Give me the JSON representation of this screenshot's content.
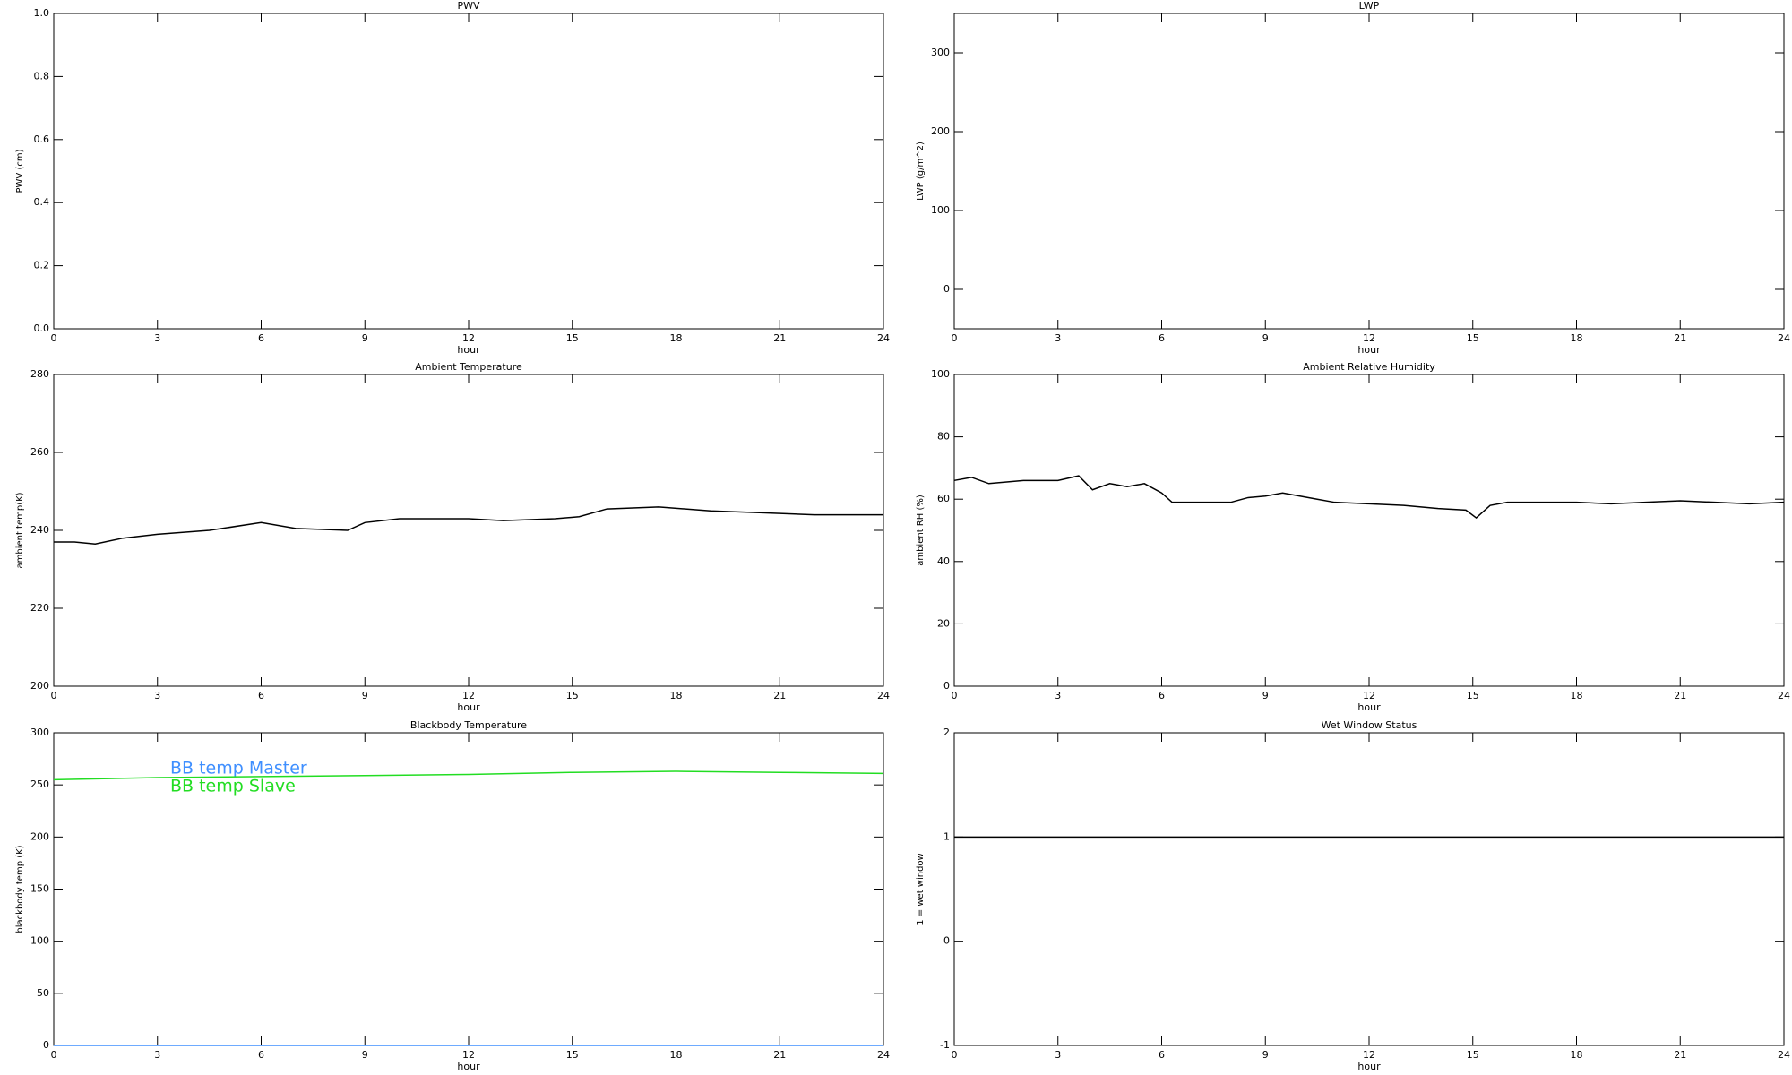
{
  "chart_data": [
    {
      "type": "line",
      "title": "PWV",
      "xlabel": "hour",
      "ylabel": "PWV (cm)",
      "xlim": [
        0,
        24
      ],
      "xticks": [
        0,
        3,
        6,
        9,
        12,
        15,
        18,
        21,
        24
      ],
      "ylim": [
        0,
        1
      ],
      "yticks": [
        {
          "value": 0,
          "label": "0.0"
        },
        0.2,
        0.4,
        0.6,
        0.8,
        {
          "value": 1,
          "label": "1.0"
        }
      ]
    },
    {
      "type": "line",
      "title": "LWP",
      "xlabel": "hour",
      "ylabel": "LWP (g/m^2)",
      "xlim": [
        0,
        24
      ],
      "xticks": [
        0,
        3,
        6,
        9,
        12,
        15,
        18,
        21,
        24
      ],
      "ylim": [
        -50,
        350
      ],
      "yticks": [
        0,
        100,
        200,
        300
      ]
    },
    {
      "type": "line",
      "title": "Ambient Temperature",
      "xlabel": "hour",
      "ylabel": "ambient temp(K)",
      "xlim": [
        0,
        24
      ],
      "xticks": [
        0,
        3,
        6,
        9,
        12,
        15,
        18,
        21,
        24
      ],
      "ylim": [
        200,
        280
      ],
      "yticks": [
        200,
        220,
        240,
        260,
        280
      ],
      "color": "#000000",
      "x": [
        0,
        0.6,
        1.2,
        2,
        3,
        4.5,
        6,
        7,
        8.5,
        9,
        10,
        12,
        13,
        14.5,
        15.2,
        16,
        17.5,
        19,
        20.5,
        22,
        24
      ],
      "values": [
        237,
        237,
        236.5,
        238,
        239,
        240,
        242,
        240.5,
        240,
        242,
        243,
        243,
        242.5,
        243,
        243.5,
        245.5,
        246,
        245,
        244.5,
        244,
        244
      ]
    },
    {
      "type": "line",
      "title": "Ambient Relative Humidity",
      "xlabel": "hour",
      "ylabel": "ambient RH (%)",
      "xlim": [
        0,
        24
      ],
      "xticks": [
        0,
        3,
        6,
        9,
        12,
        15,
        18,
        21,
        24
      ],
      "ylim": [
        0,
        100
      ],
      "yticks": [
        0,
        20,
        40,
        60,
        80,
        100
      ],
      "color": "#000000",
      "x": [
        0,
        0.5,
        1,
        2,
        3,
        3.6,
        4,
        4.5,
        5,
        5.5,
        6,
        6.3,
        7,
        8,
        8.5,
        9,
        9.5,
        10.5,
        11,
        12,
        13,
        14,
        14.8,
        15.1,
        15.5,
        16,
        18,
        19,
        20,
        21,
        22,
        23,
        24
      ],
      "values": [
        66,
        67,
        65,
        66,
        66,
        67.5,
        63,
        65,
        64,
        65,
        62,
        59,
        59,
        59,
        60.5,
        61,
        62,
        60,
        59,
        58.5,
        58,
        57,
        56.5,
        54,
        58,
        59,
        59,
        58.5,
        59,
        59.5,
        59,
        58.5,
        59
      ]
    },
    {
      "type": "line",
      "title": "Blackbody Temperature",
      "xlabel": "hour",
      "ylabel": "blackbody temp (K)",
      "xlim": [
        0,
        24
      ],
      "xticks": [
        0,
        3,
        6,
        9,
        12,
        15,
        18,
        21,
        24
      ],
      "ylim": [
        0,
        300
      ],
      "yticks": [
        0,
        50,
        100,
        150,
        200,
        250,
        300
      ],
      "legend": "upper left",
      "x": [
        0,
        3,
        6,
        9,
        12,
        15,
        18,
        21,
        24
      ],
      "series": [
        {
          "name": "BB temp Master",
          "color": "#3f8fff",
          "values": [
            0,
            0,
            0,
            0,
            0,
            0,
            0,
            0,
            0
          ]
        },
        {
          "name": "BB temp Slave",
          "color": "#22dd22",
          "values": [
            255,
            257,
            258,
            259,
            260,
            262,
            263,
            262,
            261
          ]
        }
      ]
    },
    {
      "type": "line",
      "title": "Wet Window Status",
      "xlabel": "hour",
      "ylabel": "1 = wet window",
      "xlim": [
        0,
        24
      ],
      "xticks": [
        0,
        3,
        6,
        9,
        12,
        15,
        18,
        21,
        24
      ],
      "ylim": [
        -1,
        2
      ],
      "yticks": [
        -1,
        0,
        1,
        2
      ],
      "color": "#000000",
      "x": [
        0,
        24
      ],
      "values": [
        1,
        1
      ]
    }
  ]
}
